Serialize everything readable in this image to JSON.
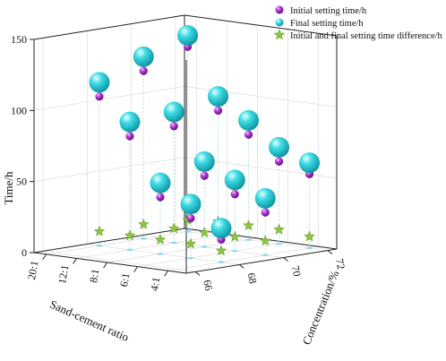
{
  "chart_data": {
    "type": "scatter3d",
    "x_axis": {
      "label": "Sand-cement ratio",
      "tick_labels": [
        "4:1",
        "6:1",
        "8:1",
        "12:1",
        "20:1"
      ],
      "ticks": [
        4,
        6,
        8,
        12,
        20
      ]
    },
    "y_axis": {
      "label": "Concentration/%",
      "tick_labels": [
        "66",
        "68",
        "70",
        "72"
      ],
      "ticks": [
        66,
        68,
        70,
        72
      ],
      "range": [
        66,
        72
      ]
    },
    "z_axis": {
      "label": "Time/h",
      "tick_labels": [
        "0",
        "50",
        "100",
        "150"
      ],
      "ticks": [
        0,
        50,
        100,
        150
      ],
      "range": [
        0,
        150
      ]
    },
    "grid": true,
    "legend_placement": "top-right",
    "colors": {
      "initial": "#a020c0",
      "final": "#22c6d2",
      "difference": "#8cc63f"
    },
    "series": [
      {
        "name": "Initial setting time/h",
        "marker": "sphere-small",
        "points": [
          {
            "sc": 4,
            "c": 68,
            "t": 16
          },
          {
            "sc": 6,
            "c": 68,
            "t": 28
          },
          {
            "sc": 8,
            "c": 68,
            "t": 40
          },
          {
            "sc": 12,
            "c": 68,
            "t": 80
          },
          {
            "sc": 20,
            "c": 68,
            "t": 105
          },
          {
            "sc": 4,
            "c": 70,
            "t": 30
          },
          {
            "sc": 6,
            "c": 70,
            "t": 40
          },
          {
            "sc": 8,
            "c": 70,
            "t": 50
          },
          {
            "sc": 12,
            "c": 70,
            "t": 82
          },
          {
            "sc": 20,
            "c": 70,
            "t": 118
          },
          {
            "sc": 4,
            "c": 72,
            "t": 52
          },
          {
            "sc": 6,
            "c": 72,
            "t": 58
          },
          {
            "sc": 8,
            "c": 72,
            "t": 74
          },
          {
            "sc": 12,
            "c": 72,
            "t": 88
          },
          {
            "sc": 20,
            "c": 72,
            "t": 130
          }
        ]
      },
      {
        "name": "Final setting time/h",
        "marker": "sphere-large",
        "points": [
          {
            "sc": 4,
            "c": 68,
            "t": 24
          },
          {
            "sc": 6,
            "c": 68,
            "t": 38
          },
          {
            "sc": 8,
            "c": 68,
            "t": 50
          },
          {
            "sc": 12,
            "c": 68,
            "t": 90
          },
          {
            "sc": 20,
            "c": 68,
            "t": 115
          },
          {
            "sc": 4,
            "c": 70,
            "t": 40
          },
          {
            "sc": 6,
            "c": 70,
            "t": 50
          },
          {
            "sc": 8,
            "c": 70,
            "t": 60
          },
          {
            "sc": 12,
            "c": 70,
            "t": 92
          },
          {
            "sc": 20,
            "c": 70,
            "t": 128
          },
          {
            "sc": 4,
            "c": 72,
            "t": 60
          },
          {
            "sc": 6,
            "c": 72,
            "t": 68
          },
          {
            "sc": 8,
            "c": 72,
            "t": 84
          },
          {
            "sc": 12,
            "c": 72,
            "t": 98
          },
          {
            "sc": 20,
            "c": 72,
            "t": 138
          }
        ]
      },
      {
        "name": "Initial and final setting time difference/h",
        "marker": "star",
        "points": [
          {
            "sc": 4,
            "c": 68,
            "t": 8
          },
          {
            "sc": 6,
            "c": 68,
            "t": 10
          },
          {
            "sc": 8,
            "c": 68,
            "t": 10
          },
          {
            "sc": 12,
            "c": 68,
            "t": 10
          },
          {
            "sc": 20,
            "c": 68,
            "t": 10
          },
          {
            "sc": 4,
            "c": 70,
            "t": 10
          },
          {
            "sc": 6,
            "c": 70,
            "t": 10
          },
          {
            "sc": 8,
            "c": 70,
            "t": 10
          },
          {
            "sc": 12,
            "c": 70,
            "t": 10
          },
          {
            "sc": 20,
            "c": 70,
            "t": 10
          },
          {
            "sc": 4,
            "c": 72,
            "t": 8
          },
          {
            "sc": 6,
            "c": 72,
            "t": 10
          },
          {
            "sc": 8,
            "c": 72,
            "t": 10
          },
          {
            "sc": 12,
            "c": 72,
            "t": 10
          },
          {
            "sc": 20,
            "c": 72,
            "t": 8
          }
        ]
      }
    ]
  }
}
